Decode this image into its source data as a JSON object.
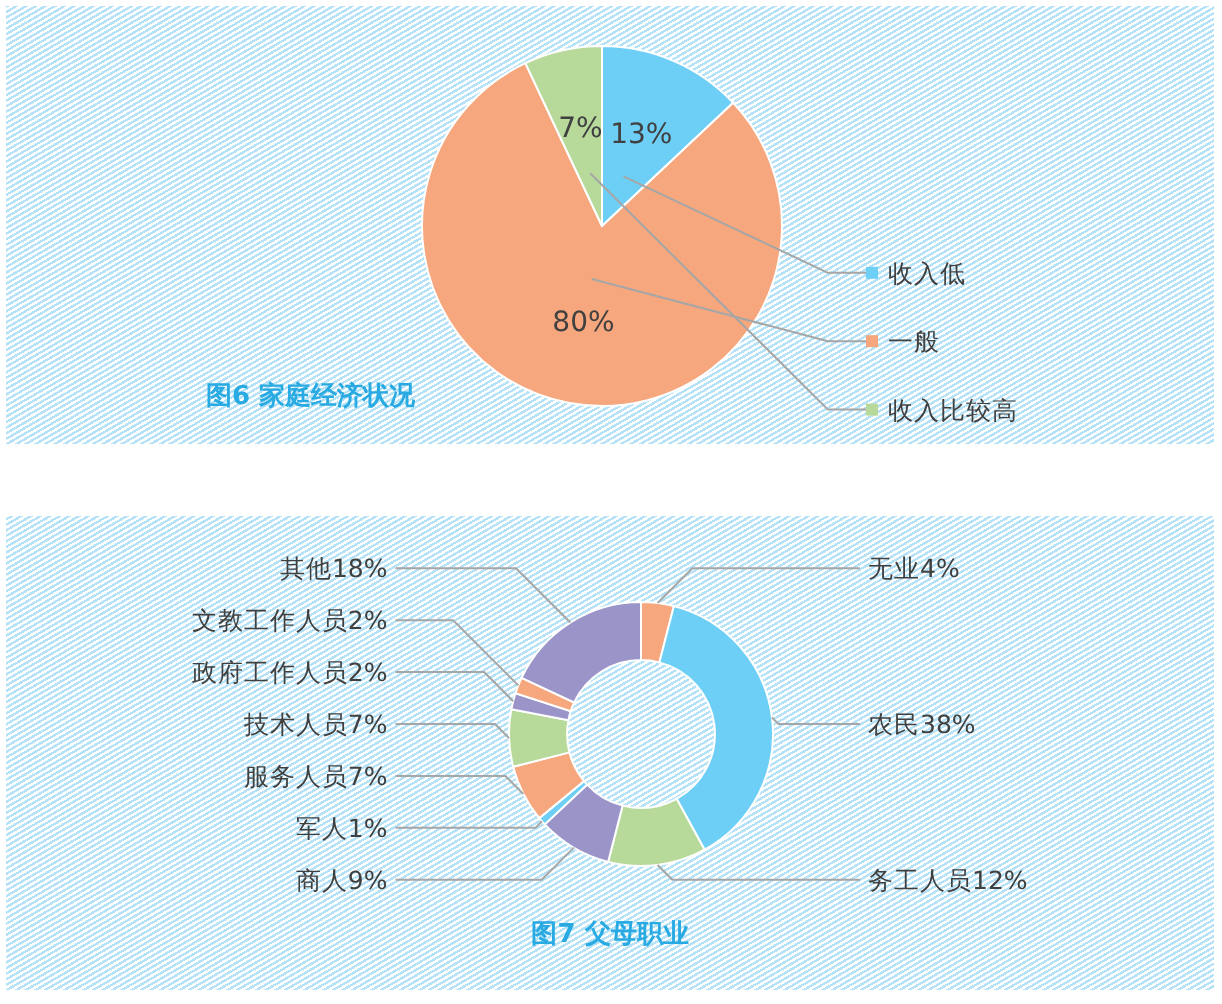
{
  "chart_data": [
    {
      "type": "pie",
      "title": "图6 家庭经济状况",
      "categories": [
        "收入低",
        "一般",
        "收入比较高"
      ],
      "values": [
        13,
        80,
        7
      ],
      "colors": [
        "#6dcff6",
        "#f6a77d",
        "#b7da9b"
      ],
      "value_labels": [
        "13%",
        "80%",
        "7%"
      ],
      "legend": "right"
    },
    {
      "type": "donut",
      "title": "图7 父母职业",
      "categories": [
        "无业",
        "农民",
        "务工人员",
        "商人",
        "军人",
        "服务人员",
        "技术人员",
        "政府工作人员",
        "文教工作人员",
        "其他"
      ],
      "values": [
        4,
        38,
        12,
        9,
        1,
        7,
        7,
        2,
        2,
        18
      ],
      "colors": [
        "#f6a77d",
        "#6dcff6",
        "#b7da9b",
        "#9b94c8",
        "#6dcff6",
        "#f6a77d",
        "#b7da9b",
        "#9b94c8",
        "#f6a77d",
        "#9b94c8"
      ],
      "value_labels": [
        "4%",
        "38%",
        "12%",
        "9%",
        "1%",
        "7%",
        "7%",
        "2%",
        "2%",
        "18%"
      ]
    }
  ]
}
